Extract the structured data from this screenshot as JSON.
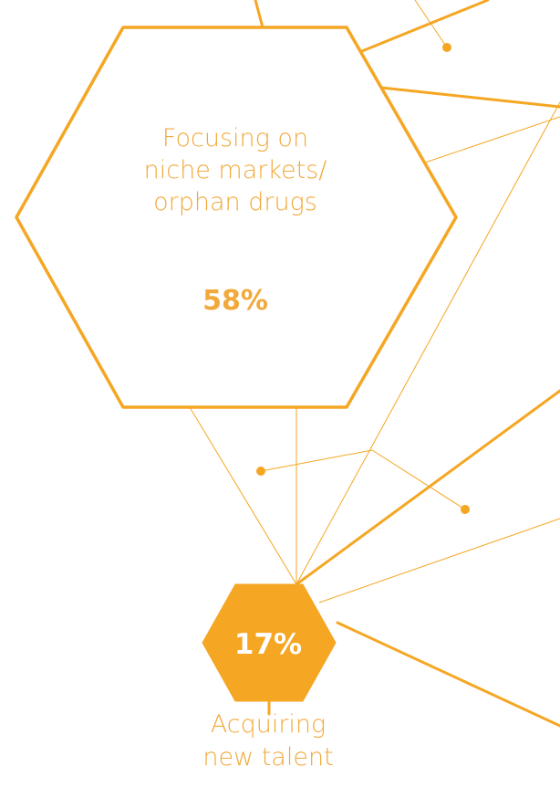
{
  "colors": {
    "accent": "#F5A623",
    "accent_text": "#F2A93B",
    "fill_text": "#FFFFFF",
    "background": "#FFFFFF"
  },
  "node_large": {
    "title_line_1": "Focusing on",
    "title_line_2": "niche markets/",
    "title_line_3": "orphan drugs",
    "percent": "58%"
  },
  "node_small": {
    "percent": "17%",
    "title_line_1": "Acquiring",
    "title_line_2": "new talent"
  }
}
